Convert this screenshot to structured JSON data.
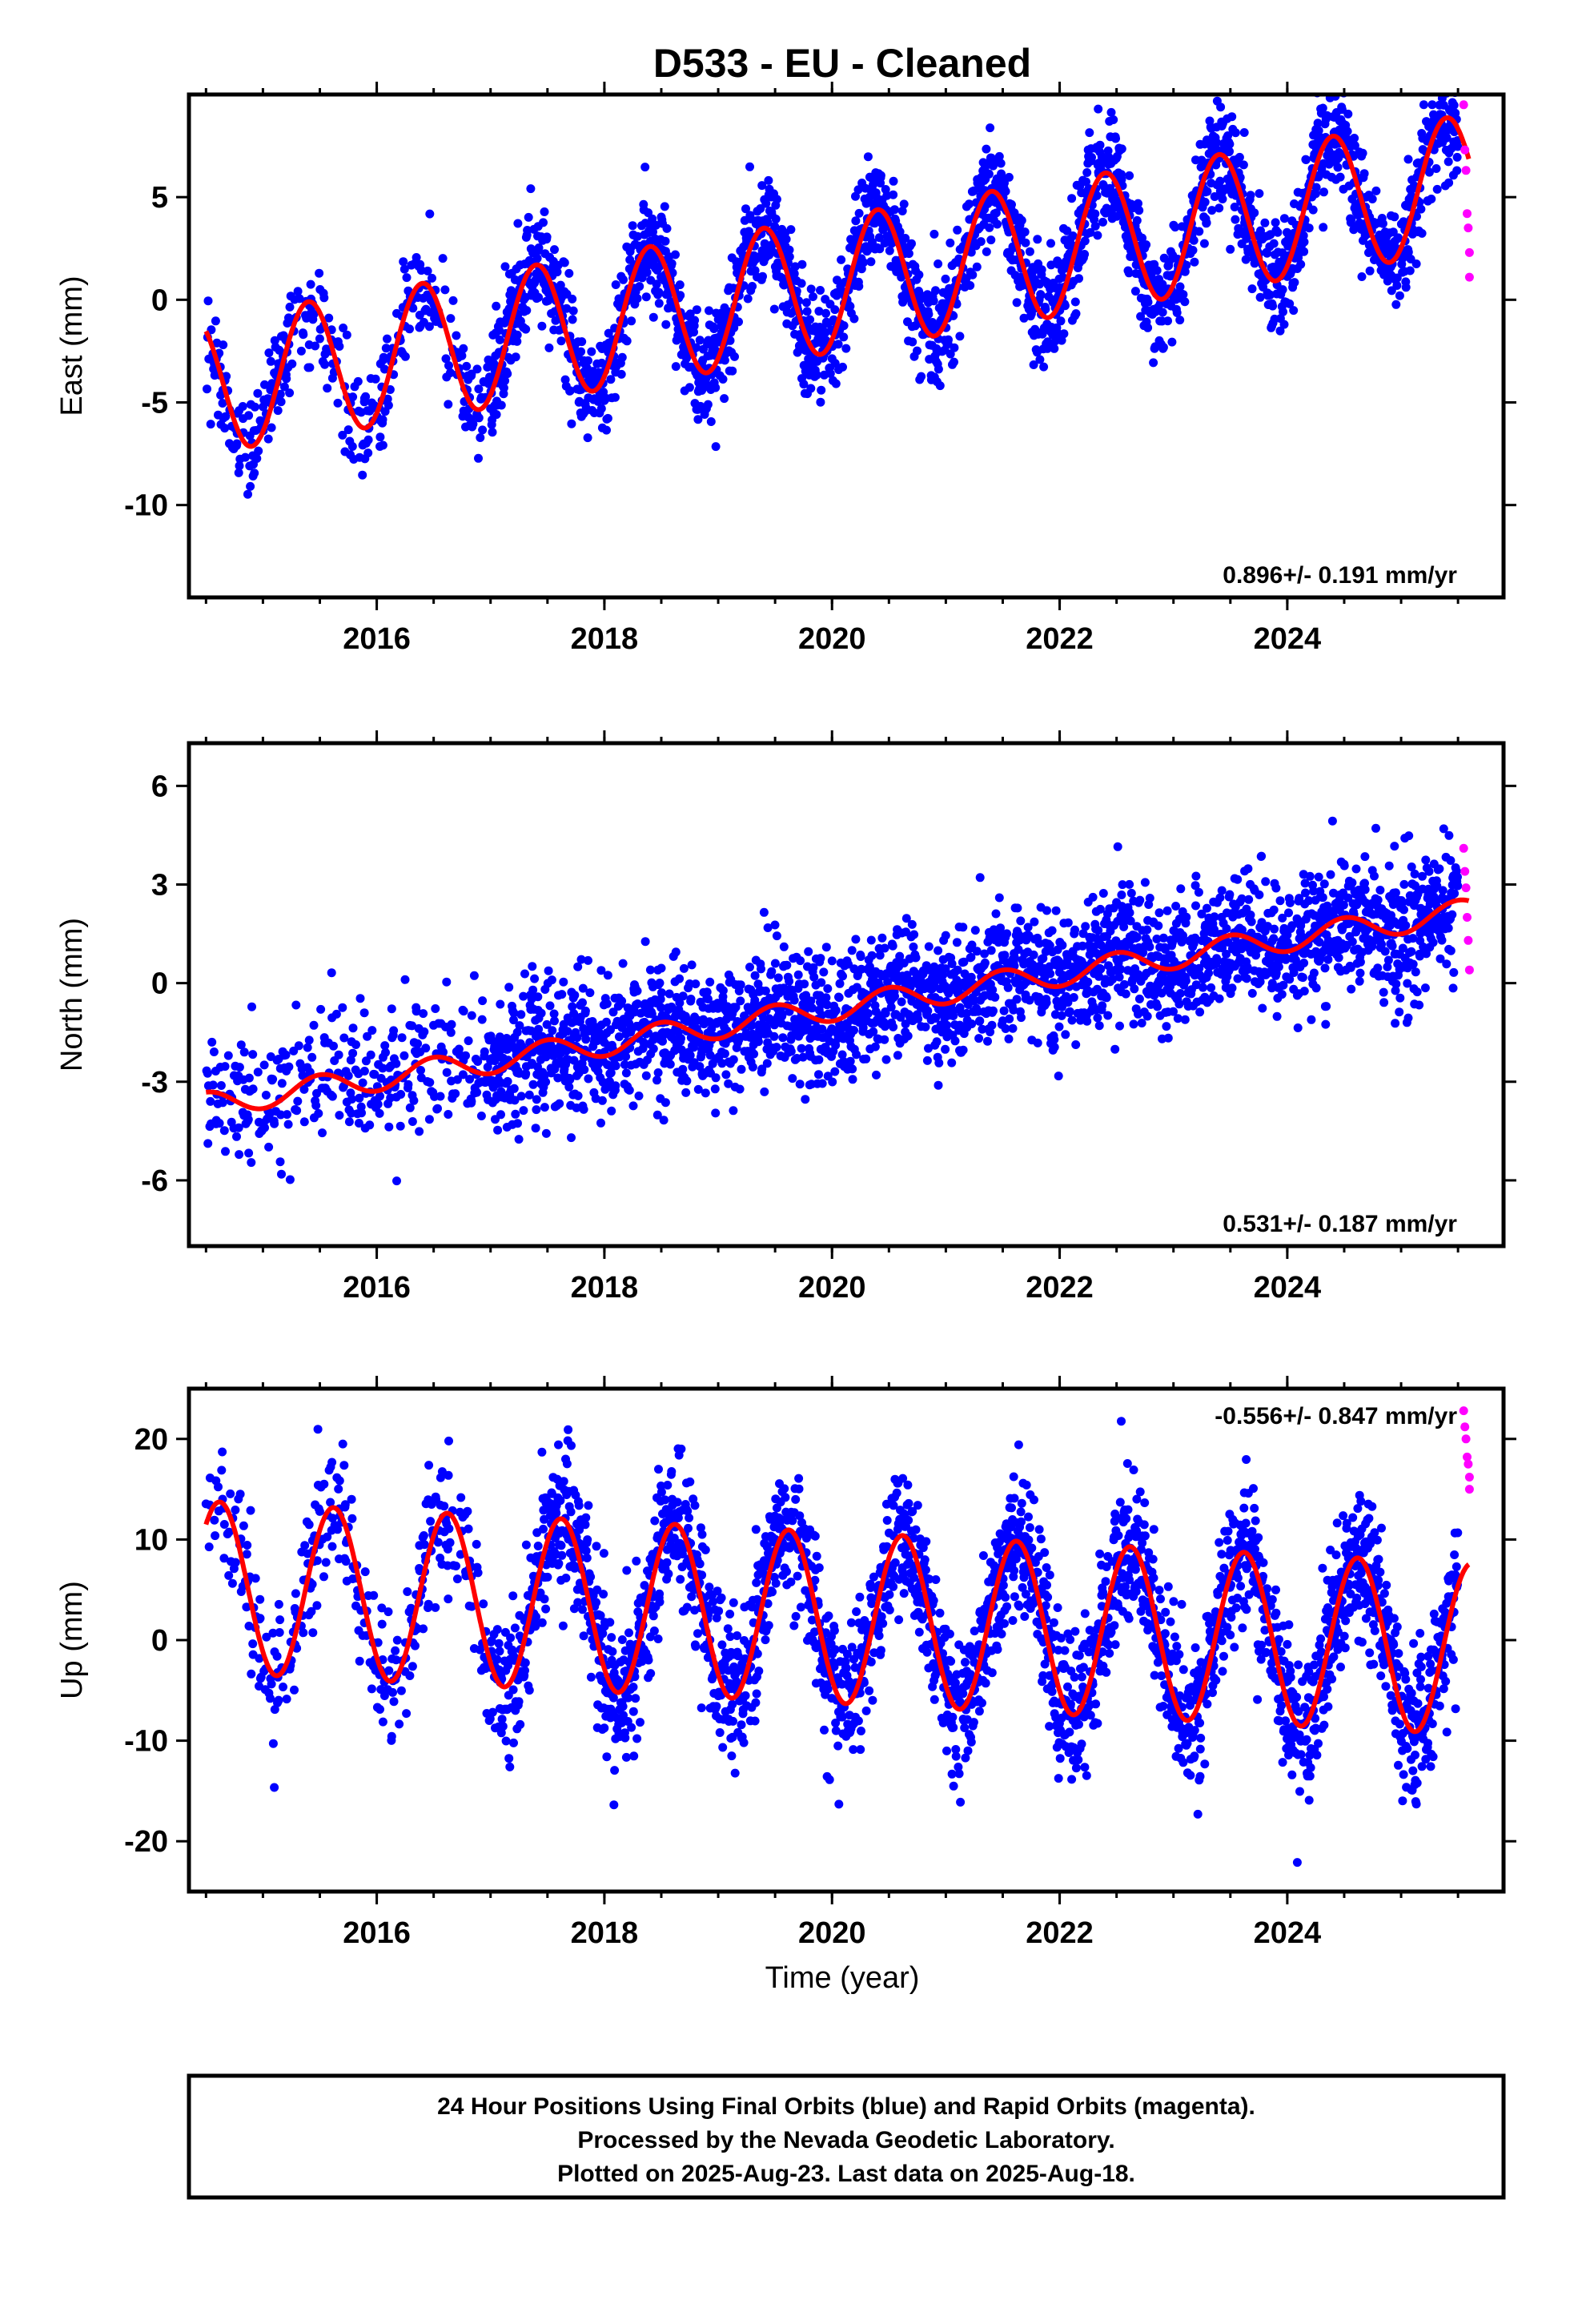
{
  "title": "D533  - EU - Cleaned",
  "xlabel": "Time (year)",
  "footer": {
    "lines": [
      "24 Hour Positions Using Final Orbits (blue) and Rapid Orbits (magenta).",
      "Processed by the Nevada Geodetic Laboratory.",
      "Plotted on 2025-Aug-23. Last data on 2025-Aug-18."
    ]
  },
  "colors": {
    "final": "#0000ff",
    "rapid": "#ff00ff",
    "model": "#ff0000",
    "frame": "#000000"
  },
  "chart_data": [
    {
      "type": "scatter",
      "id": "east",
      "ylabel": "East (mm)",
      "rate_label": "0.896+/- 0.191 mm/yr",
      "xlim": [
        2014.35,
        2025.9
      ],
      "ylim": [
        -14.5,
        10
      ],
      "xticks": [
        2016,
        2018,
        2020,
        2022,
        2024
      ],
      "xtick_labels": [
        "2016",
        "2018",
        "2020",
        "2022",
        "2024"
      ],
      "yticks": [
        5,
        0,
        -5,
        -10
      ],
      "ytick_labels": [
        "5",
        "0",
        "-5",
        "-10"
      ],
      "model": {
        "start": 2014.5,
        "end": 2025.6,
        "intercept": -4.2,
        "rate": 0.896,
        "annual_amplitude": 3.3,
        "peak_phase": 0.4
      },
      "series": [
        {
          "color_key": "final",
          "x_range": [
            2014.5,
            2025.5
          ],
          "scatter": 1.3
        },
        {
          "color_key": "rapid",
          "points": [
            [
              2025.55,
              9.5
            ],
            [
              2025.56,
              7.3
            ],
            [
              2025.57,
              6.3
            ],
            [
              2025.58,
              4.2
            ],
            [
              2025.59,
              3.5
            ],
            [
              2025.6,
              2.3
            ],
            [
              2025.6,
              1.1
            ]
          ]
        }
      ]
    },
    {
      "type": "scatter",
      "id": "north",
      "ylabel": "North (mm)",
      "rate_label": "0.531+/- 0.187 mm/yr",
      "xlim": [
        2014.35,
        2025.9
      ],
      "ylim": [
        -8,
        7.3
      ],
      "xticks": [
        2016,
        2018,
        2020,
        2022,
        2024
      ],
      "xtick_labels": [
        "2016",
        "2018",
        "2020",
        "2022",
        "2024"
      ],
      "yticks": [
        6,
        3,
        0,
        -3,
        -6
      ],
      "ytick_labels": [
        "6",
        "3",
        "0",
        "-3",
        "-6"
      ],
      "model": {
        "start": 2014.5,
        "end": 2025.6,
        "intercept": -3.7,
        "rate": 0.531,
        "annual_amplitude": 0.38,
        "peak_phase": 0.5
      },
      "series": [
        {
          "color_key": "final",
          "x_range": [
            2014.5,
            2025.5
          ],
          "scatter": 1.0
        },
        {
          "color_key": "rapid",
          "points": [
            [
              2025.55,
              4.1
            ],
            [
              2025.56,
              3.4
            ],
            [
              2025.57,
              2.9
            ],
            [
              2025.58,
              2.0
            ],
            [
              2025.59,
              1.3
            ],
            [
              2025.6,
              0.4
            ]
          ]
        }
      ]
    },
    {
      "type": "scatter",
      "id": "up",
      "ylabel": "Up (mm)",
      "rate_label": "-0.556+/- 0.847 mm/yr",
      "xlim": [
        2014.35,
        2025.9
      ],
      "ylim": [
        -25,
        25
      ],
      "xticks": [
        2016,
        2018,
        2020,
        2022,
        2024
      ],
      "xtick_labels": [
        "2016",
        "2018",
        "2020",
        "2022",
        "2024"
      ],
      "yticks": [
        20,
        10,
        0,
        -10,
        -20
      ],
      "ytick_labels": [
        "20",
        "10",
        "0",
        "-10",
        "-20"
      ],
      "model": {
        "start": 2014.5,
        "end": 2025.6,
        "intercept": 5.3,
        "rate": -0.556,
        "annual_amplitude": 8.5,
        "peak_phase": 0.62
      },
      "series": [
        {
          "color_key": "final",
          "x_range": [
            2014.5,
            2025.5
          ],
          "scatter": 3.6
        },
        {
          "color_key": "rapid",
          "points": [
            [
              2025.55,
              22.8
            ],
            [
              2025.56,
              21.2
            ],
            [
              2025.57,
              20.0
            ],
            [
              2025.58,
              18.2
            ],
            [
              2025.59,
              17.5
            ],
            [
              2025.6,
              16.2
            ],
            [
              2025.6,
              15.0
            ]
          ]
        }
      ]
    }
  ]
}
